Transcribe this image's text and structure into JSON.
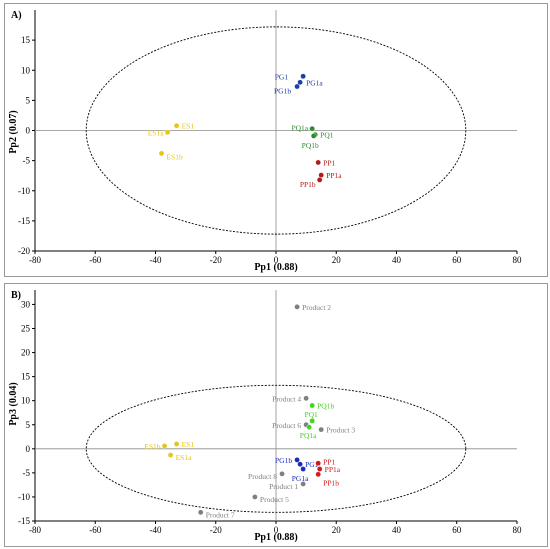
{
  "chart_data": [
    {
      "type": "scatter",
      "panel_label": "A)",
      "xlabel": "Pp1 (0.88)",
      "ylabel": "Pp2 (0.07)",
      "xlim": [
        -80,
        80
      ],
      "ylim": [
        -20,
        20
      ],
      "x_ticks": [
        "-80",
        "-60",
        "-40",
        "-20",
        "0",
        "20",
        "40",
        "60",
        "80"
      ],
      "y_ticks": [
        "-20",
        "-15",
        "-10",
        "-5",
        "0",
        "5",
        "10",
        "15"
      ],
      "ellipse": {
        "center": [
          0,
          0
        ],
        "rx": 63,
        "ry": 17.2,
        "style": "dashed"
      },
      "points": [
        {
          "label": "PG1",
          "x": 9,
          "y": 9,
          "color": "#1f3fa6"
        },
        {
          "label": "PG1a",
          "x": 8,
          "y": 8,
          "color": "#1f3fa6"
        },
        {
          "label": "PG1b",
          "x": 7,
          "y": 7.3,
          "color": "#1f3fa6"
        },
        {
          "label": "ES1",
          "x": -33,
          "y": 0.8,
          "color": "#e6c619"
        },
        {
          "label": "ES1a",
          "x": -36,
          "y": -0.3,
          "color": "#e6c619"
        },
        {
          "label": "ES1b",
          "x": -38,
          "y": -3.8,
          "color": "#e6c619"
        },
        {
          "label": "PQ1a",
          "x": 12,
          "y": 0.3,
          "color": "#2e8b2e"
        },
        {
          "label": "PQ1",
          "x": 13,
          "y": -0.7,
          "color": "#2e8b2e"
        },
        {
          "label": "PQ1b",
          "x": 12.5,
          "y": -0.9,
          "color": "#2e8b2e"
        },
        {
          "label": "PP1",
          "x": 14,
          "y": -5.3,
          "color": "#b01c1c"
        },
        {
          "label": "PP1a",
          "x": 15,
          "y": -7.4,
          "color": "#b01c1c"
        },
        {
          "label": "PP1b",
          "x": 14.5,
          "y": -8.2,
          "color": "#b01c1c"
        }
      ]
    },
    {
      "type": "scatter",
      "panel_label": "B)",
      "xlabel": "Pp1 (0.88)",
      "ylabel": "Pp3 (0.04)",
      "xlim": [
        -80,
        80
      ],
      "ylim": [
        -15,
        33
      ],
      "x_ticks": [
        "-80",
        "-60",
        "-40",
        "-20",
        "0",
        "20",
        "40",
        "60",
        "80"
      ],
      "y_ticks": [
        "-15",
        "-10",
        "-5",
        "0",
        "5",
        "10",
        "15",
        "20",
        "25",
        "30"
      ],
      "ellipse": {
        "center": [
          0,
          0
        ],
        "rx": 63,
        "ry": 13.2,
        "style": "dashed"
      },
      "points": [
        {
          "label": "Product 2",
          "x": 7,
          "y": 29.5,
          "color": "#7f7f7f"
        },
        {
          "label": "Product 4",
          "x": 10,
          "y": 10.5,
          "color": "#7f7f7f"
        },
        {
          "label": "Product 6",
          "x": 10,
          "y": 5,
          "color": "#7f7f7f"
        },
        {
          "label": "Product 3",
          "x": 15,
          "y": 4,
          "color": "#7f7f7f"
        },
        {
          "label": "Product 8",
          "x": 2,
          "y": -5.2,
          "color": "#7f7f7f"
        },
        {
          "label": "Product 1",
          "x": 9,
          "y": -7.3,
          "color": "#7f7f7f"
        },
        {
          "label": "Product 5",
          "x": -7,
          "y": -10,
          "color": "#7f7f7f"
        },
        {
          "label": "Product 7",
          "x": -25,
          "y": -13.2,
          "color": "#7f7f7f"
        },
        {
          "label": "PQ1b",
          "x": 12,
          "y": 9,
          "color": "#44d11f"
        },
        {
          "label": "PQ1",
          "x": 12,
          "y": 5.8,
          "color": "#44d11f"
        },
        {
          "label": "PQ1a",
          "x": 11,
          "y": 4.5,
          "color": "#44d11f"
        },
        {
          "label": "ES1b",
          "x": -37,
          "y": 0.6,
          "color": "#e6c619"
        },
        {
          "label": "ES1",
          "x": -33,
          "y": 1,
          "color": "#e6c619"
        },
        {
          "label": "ES1a",
          "x": -35,
          "y": -1.3,
          "color": "#e6c619"
        },
        {
          "label": "PG1b",
          "x": 7,
          "y": -2.3,
          "color": "#1a2db5"
        },
        {
          "label": "PG1",
          "x": 8,
          "y": -3.2,
          "color": "#1a2db5"
        },
        {
          "label": "PG1a",
          "x": 9,
          "y": -4.2,
          "color": "#1a2db5"
        },
        {
          "label": "PP1",
          "x": 14,
          "y": -3,
          "color": "#d11a1a"
        },
        {
          "label": "PP1a",
          "x": 14.5,
          "y": -4.2,
          "color": "#d11a1a"
        },
        {
          "label": "PP1b",
          "x": 14,
          "y": -5.3,
          "color": "#d11a1a"
        }
      ]
    }
  ]
}
